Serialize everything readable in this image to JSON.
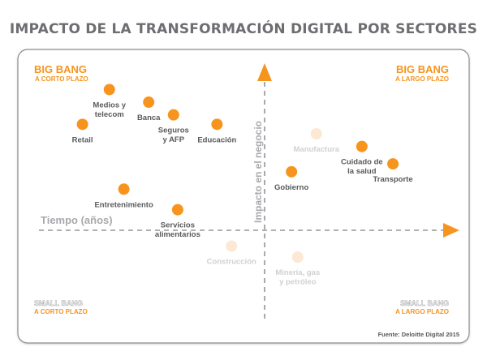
{
  "title": "IMPACTO DE LA TRANSFORMACIÓN DIGITAL POR SECTORES",
  "chart_data": {
    "type": "scatter",
    "xlabel": "Tiempo (años)",
    "ylabel": "Impacto en el negocio",
    "grid": false,
    "quadrants": {
      "top_left": [
        "BIG BANG",
        "A CORTO PLAZO"
      ],
      "top_right": [
        "BIG BANG",
        "A LARGO PLAZO"
      ],
      "bottom_left": [
        "SMALL BANG",
        "A CORTO PLAZO"
      ],
      "bottom_right": [
        "SMALL BANG",
        "A LARGO PLAZO"
      ]
    },
    "points": [
      {
        "label": [
          "Retail"
        ],
        "x": -0.88,
        "y": 0.67,
        "highlight": true
      },
      {
        "label": [
          "Medios y",
          "telecom"
        ],
        "x": -0.75,
        "y": 0.89,
        "highlight": true
      },
      {
        "label": [
          "Banca"
        ],
        "x": -0.56,
        "y": 0.81,
        "highlight": true
      },
      {
        "label": [
          "Seguros",
          "y AFP"
        ],
        "x": -0.44,
        "y": 0.73,
        "highlight": true
      },
      {
        "label": [
          "Educación"
        ],
        "x": -0.23,
        "y": 0.67,
        "highlight": true
      },
      {
        "label": [
          "Entretenimiento"
        ],
        "x": -0.68,
        "y": 0.26,
        "highlight": true
      },
      {
        "label": [
          "Servicios",
          "alimentarios"
        ],
        "x": -0.42,
        "y": 0.13,
        "highlight": true
      },
      {
        "label": [
          "Construcción"
        ],
        "x": -0.16,
        "y": -0.1,
        "highlight": false
      },
      {
        "label": [
          "Gobierno"
        ],
        "x": 0.13,
        "y": 0.37,
        "highlight": true
      },
      {
        "label": [
          "Manufactura"
        ],
        "x": 0.25,
        "y": 0.61,
        "highlight": false
      },
      {
        "label": [
          "Cuidado de",
          "la salud"
        ],
        "x": 0.47,
        "y": 0.53,
        "highlight": true
      },
      {
        "label": [
          "Transporte"
        ],
        "x": 0.62,
        "y": 0.42,
        "highlight": true
      },
      {
        "label": [
          "Minería, gas",
          "y petróleo"
        ],
        "x": 0.16,
        "y": -0.17,
        "highlight": false
      }
    ],
    "source": "Fuente: Deloitte Digital 2015"
  },
  "colors": {
    "accent": "#f7941d",
    "dot_faded": "#fde8d4",
    "label": "#58595b",
    "label_faded": "#cfd0d2",
    "axis": "#939598",
    "quadrant_title_bottom": "#f7f7f7",
    "frame": "#8a8c8f"
  }
}
